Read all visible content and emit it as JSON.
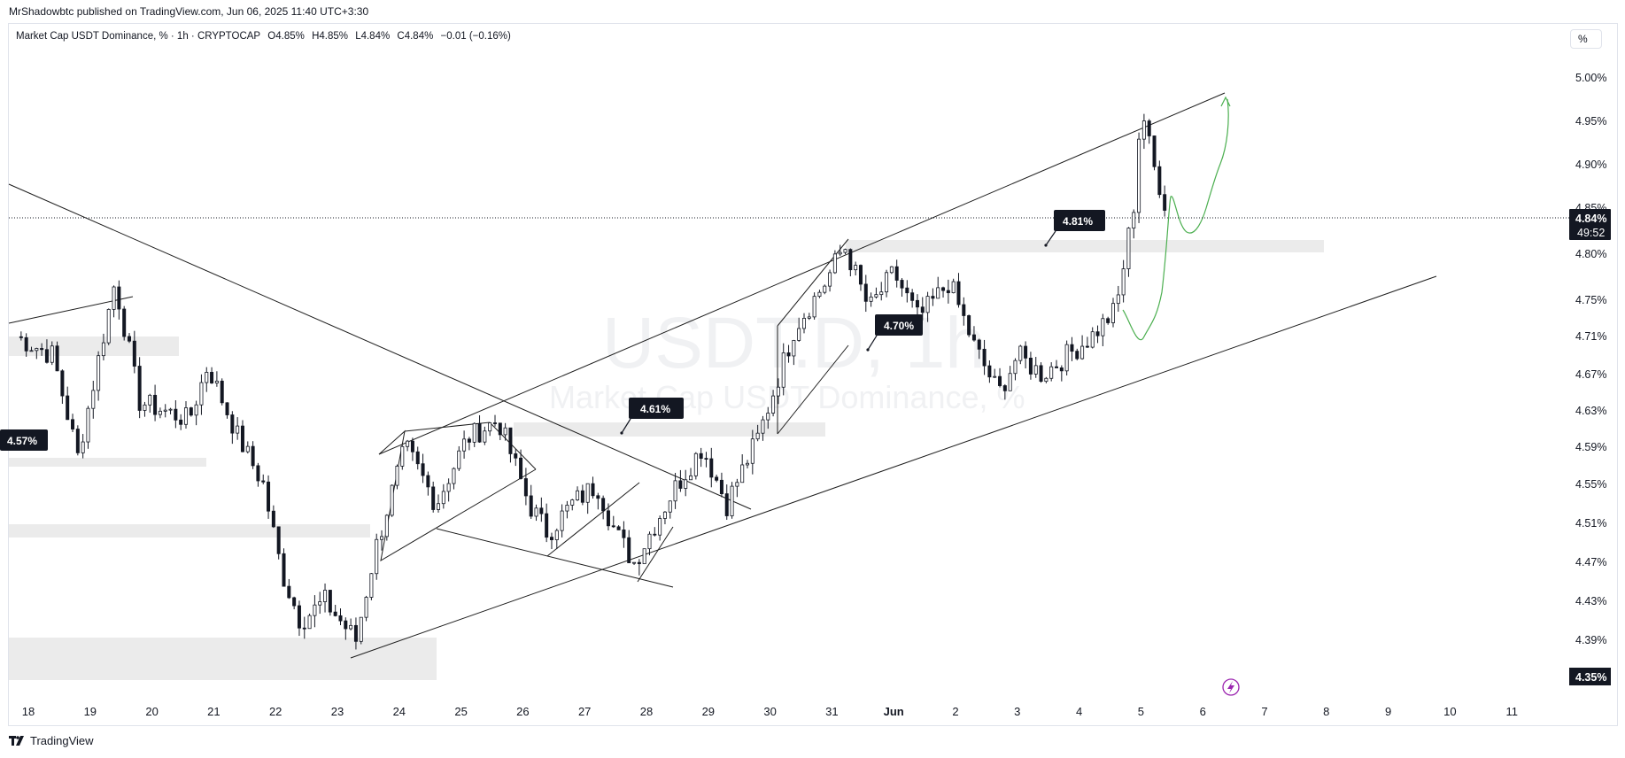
{
  "header": {
    "publisher": "MrShadowbtc published on TradingView.com, Jun 06, 2025 11:40 UTC+3:30",
    "legend": {
      "symbol": "Market Cap USDT Dominance, % · 1h · CRYPTOCAP",
      "open": "O4.85%",
      "high": "H4.85%",
      "low": "L4.84%",
      "close": "C4.84%",
      "change": "−0.01 (−0.16%)"
    },
    "scale_button": "%"
  },
  "footer": {
    "brand": "TradingView"
  },
  "watermark": {
    "ticker": "USDT.D, 1h",
    "name": "Market Cap USDT Dominance, %"
  },
  "chart_data": {
    "type": "candlestick",
    "y_ticks": [
      "5.00%",
      "4.95%",
      "4.90%",
      "4.85%",
      "4.80%",
      "4.75%",
      "4.71%",
      "4.67%",
      "4.63%",
      "4.59%",
      "4.55%",
      "4.51%",
      "4.47%",
      "4.43%",
      "4.39%",
      "4.35%"
    ],
    "x_ticks": [
      "18",
      "19",
      "20",
      "21",
      "22",
      "23",
      "24",
      "25",
      "26",
      "27",
      "28",
      "29",
      "30",
      "31",
      "Jun",
      "2",
      "3",
      "4",
      "5",
      "6",
      "7",
      "8",
      "9",
      "10",
      "11"
    ],
    "current_price": {
      "label": "4.84%",
      "countdown": "49:52",
      "value": 4.84
    },
    "bottom_price_label": "4.35%",
    "annotations": [
      {
        "text": "4.57%",
        "price": 4.57
      },
      {
        "text": "4.61%",
        "price": 4.61
      },
      {
        "text": "4.70%",
        "price": 4.7
      },
      {
        "text": "4.81%",
        "price": 4.81
      }
    ],
    "path_keypoints": [
      {
        "day": 17.8,
        "v": 4.71
      },
      {
        "day": 18.4,
        "v": 4.69
      },
      {
        "day": 18.8,
        "v": 4.58
      },
      {
        "day": 19.4,
        "v": 4.77
      },
      {
        "day": 19.8,
        "v": 4.64
      },
      {
        "day": 20.6,
        "v": 4.62
      },
      {
        "day": 20.9,
        "v": 4.68
      },
      {
        "day": 21.4,
        "v": 4.6
      },
      {
        "day": 21.8,
        "v": 4.55
      },
      {
        "day": 22.1,
        "v": 4.46
      },
      {
        "day": 22.4,
        "v": 4.41
      },
      {
        "day": 22.8,
        "v": 4.43
      },
      {
        "day": 23.3,
        "v": 4.39
      },
      {
        "day": 23.6,
        "v": 4.48
      },
      {
        "day": 24.1,
        "v": 4.59
      },
      {
        "day": 24.6,
        "v": 4.53
      },
      {
        "day": 25.1,
        "v": 4.6
      },
      {
        "day": 25.6,
        "v": 4.62
      },
      {
        "day": 26.1,
        "v": 4.53
      },
      {
        "day": 26.4,
        "v": 4.5
      },
      {
        "day": 26.8,
        "v": 4.53
      },
      {
        "day": 27.2,
        "v": 4.55
      },
      {
        "day": 27.5,
        "v": 4.5
      },
      {
        "day": 27.8,
        "v": 4.47
      },
      {
        "day": 28.4,
        "v": 4.54
      },
      {
        "day": 28.9,
        "v": 4.59
      },
      {
        "day": 29.3,
        "v": 4.53
      },
      {
        "day": 29.8,
        "v": 4.6
      },
      {
        "day": 30.4,
        "v": 4.72
      },
      {
        "day": 30.9,
        "v": 4.77
      },
      {
        "day": 31.2,
        "v": 4.81
      },
      {
        "day": 31.6,
        "v": 4.74
      },
      {
        "day": 32.0,
        "v": 4.78
      },
      {
        "day": 32.4,
        "v": 4.73
      },
      {
        "day": 32.9,
        "v": 4.77
      },
      {
        "day": 33.3,
        "v": 4.7
      },
      {
        "day": 33.7,
        "v": 4.65
      },
      {
        "day": 34.0,
        "v": 4.69
      },
      {
        "day": 34.4,
        "v": 4.67
      },
      {
        "day": 34.8,
        "v": 4.69
      },
      {
        "day": 35.2,
        "v": 4.71
      },
      {
        "day": 35.6,
        "v": 4.74
      },
      {
        "day": 35.9,
        "v": 4.86
      },
      {
        "day": 36.0,
        "v": 4.97
      },
      {
        "day": 36.2,
        "v": 4.9
      },
      {
        "day": 36.45,
        "v": 4.84
      }
    ]
  }
}
